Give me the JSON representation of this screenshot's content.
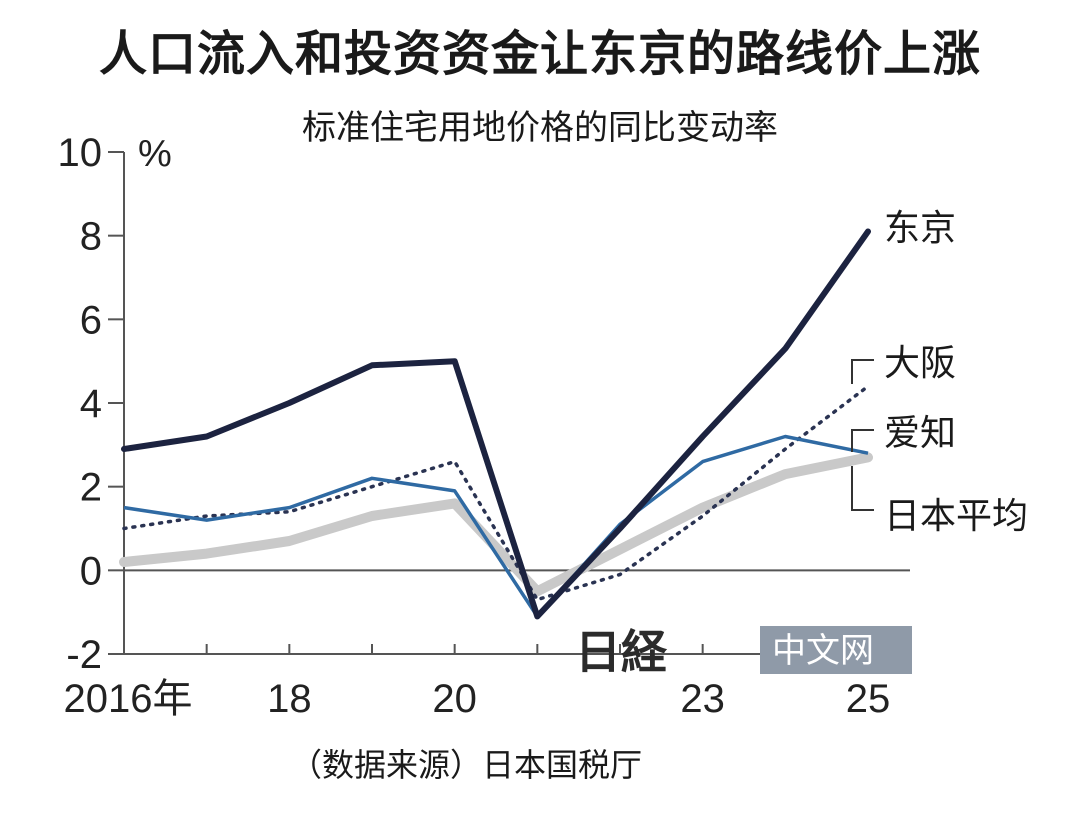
{
  "title": "人口流入和投资资金让东京的路线价上涨",
  "subtitle": "标准住宅用地价格的同比变动率",
  "source": "（数据来源）日本国税厅",
  "watermark": {
    "jp": "日経",
    "cn": "中文网"
  },
  "colors": {
    "tokyo": "#1c2340",
    "osaka": "#2a3352",
    "aichi": "#2f6aa3",
    "japan_avg": "#c9c9c9",
    "axis": "#555555"
  },
  "chart_data": {
    "type": "line",
    "title": "人口流入和投资资金让东京的路线价上涨",
    "subtitle": "标准住宅用地价格的同比变动率",
    "ylabel": "%",
    "ylim": [
      -2,
      10
    ],
    "yticks": [
      "10",
      "8",
      "6",
      "4",
      "2",
      "0",
      "-2"
    ],
    "x": [
      2016,
      2017,
      2018,
      2019,
      2020,
      2021,
      2022,
      2023,
      2024,
      2025
    ],
    "xticks": [
      {
        "x": 2016,
        "label": "2016年"
      },
      {
        "x": 2018,
        "label": "18"
      },
      {
        "x": 2020,
        "label": "20"
      },
      {
        "x": 2023,
        "label": "23"
      },
      {
        "x": 2025,
        "label": "25"
      }
    ],
    "series": [
      {
        "name": "东京",
        "style": "solid-thick",
        "values": [
          2.9,
          3.2,
          4.0,
          4.9,
          5.0,
          -1.1,
          1.0,
          3.2,
          5.3,
          8.1
        ]
      },
      {
        "name": "大阪",
        "style": "dotted",
        "values": [
          1.0,
          1.3,
          1.4,
          2.0,
          2.6,
          -0.7,
          -0.1,
          1.3,
          2.9,
          4.4
        ]
      },
      {
        "name": "爱知",
        "style": "solid-thin",
        "values": [
          1.5,
          1.2,
          1.5,
          2.2,
          1.9,
          -1.1,
          1.1,
          2.6,
          3.2,
          2.8
        ]
      },
      {
        "name": "日本平均",
        "style": "gray-thick",
        "values": [
          0.2,
          0.4,
          0.7,
          1.3,
          1.6,
          -0.5,
          0.5,
          1.5,
          2.3,
          2.7
        ]
      }
    ]
  }
}
